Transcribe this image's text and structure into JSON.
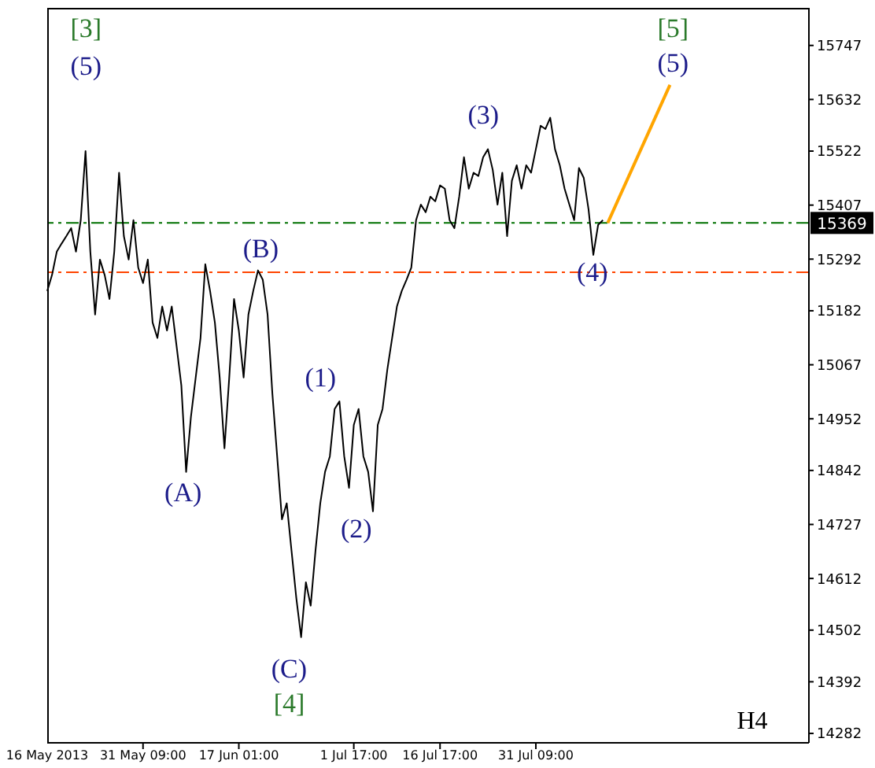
{
  "chart_data": {
    "type": "line",
    "categories": [
      "16 May 2013",
      null,
      null,
      null,
      null,
      null,
      null,
      null,
      null,
      null,
      null,
      null,
      null,
      null,
      null,
      null,
      null,
      null,
      null,
      null,
      "31 May 09:00",
      null,
      null,
      null,
      null,
      null,
      null,
      null,
      null,
      null,
      null,
      null,
      null,
      null,
      null,
      null,
      null,
      null,
      null,
      null,
      "17 Jun 01:00",
      null,
      null,
      null,
      null,
      null,
      null,
      null,
      null,
      null,
      null,
      null,
      null,
      null,
      null,
      null,
      null,
      null,
      null,
      null,
      null,
      null,
      null,
      null,
      "1 Jul 17:00",
      null,
      null,
      null,
      null,
      null,
      null,
      null,
      null,
      null,
      null,
      null,
      null,
      null,
      null,
      null,
      null,
      null,
      "16 Jul 17:00",
      null,
      null,
      null,
      null,
      null,
      null,
      null,
      null,
      null,
      null,
      null,
      null,
      null,
      null,
      null,
      null,
      null,
      null,
      null,
      "31 Jul 09:00",
      null,
      null,
      null,
      null,
      null,
      null,
      null,
      null,
      null,
      null,
      null,
      null,
      null,
      null,
      null,
      null,
      null,
      null,
      null,
      null,
      null,
      null,
      null,
      null,
      null,
      null,
      null,
      null,
      null,
      null,
      null,
      null,
      null,
      null,
      null,
      null,
      null,
      null,
      null,
      null,
      null,
      null,
      null,
      null,
      null,
      null,
      null,
      null,
      null,
      null,
      null,
      null,
      null,
      null,
      null,
      null,
      null
    ],
    "series": [
      {
        "color": "#000000",
        "values": [
          15224,
          15258,
          15308,
          15325,
          15341,
          15358,
          15308,
          15375,
          15522,
          15308,
          15174,
          15291,
          15258,
          15207,
          15308,
          15476,
          15341,
          15291,
          15375,
          15274,
          15241,
          15291,
          15157,
          15124,
          15191,
          15140,
          15191,
          15107,
          15023,
          14839,
          14956,
          15040,
          15124,
          15281,
          15224,
          15157,
          15040,
          14889,
          15040,
          15207,
          15140,
          15040,
          15174,
          15224,
          15268,
          15248,
          15174,
          15006,
          14872,
          14738,
          14772,
          14671,
          14570,
          14487,
          14604,
          14554,
          14671,
          14772,
          14839,
          14872,
          14973,
          14989,
          14872,
          14805,
          14939,
          14973,
          14872,
          14839,
          14755,
          14939,
          14973,
          15057,
          15124,
          15191,
          15224,
          15248,
          15274,
          15375,
          15408,
          15392,
          15425,
          15415,
          15449,
          15442,
          15375,
          15358,
          15425,
          15509,
          15442,
          15476,
          15469,
          15509,
          15526,
          15482,
          15408,
          15476,
          15341,
          15459,
          15492,
          15442,
          15492,
          15476,
          15526,
          15576,
          15569,
          15593,
          15526,
          15492,
          15442,
          15408,
          15375,
          15486,
          15465,
          15398,
          15301,
          15365,
          15375,
          null,
          null,
          null,
          null,
          null,
          null,
          null,
          null,
          null,
          null,
          null,
          null,
          null,
          null,
          null,
          null,
          null,
          null,
          null,
          null,
          null,
          null,
          null,
          null,
          null,
          null,
          null,
          null,
          null,
          null,
          null,
          null,
          null,
          null,
          null,
          null,
          null,
          null,
          null,
          null,
          null,
          null,
          null
        ]
      },
      {
        "type": "line",
        "color": "#ffa500",
        "values": [
          null,
          null,
          null,
          null,
          null,
          null,
          null,
          null,
          null,
          null,
          null,
          null,
          null,
          null,
          null,
          null,
          null,
          null,
          null,
          null,
          null,
          null,
          null,
          null,
          null,
          null,
          null,
          null,
          null,
          null,
          null,
          null,
          null,
          null,
          null,
          null,
          null,
          null,
          null,
          null,
          null,
          null,
          null,
          null,
          null,
          null,
          null,
          null,
          null,
          null,
          null,
          null,
          null,
          null,
          null,
          null,
          null,
          null,
          null,
          null,
          null,
          null,
          null,
          null,
          null,
          null,
          null,
          null,
          null,
          null,
          null,
          null,
          null,
          null,
          null,
          null,
          null,
          null,
          null,
          null,
          null,
          null,
          null,
          null,
          null,
          null,
          null,
          null,
          null,
          null,
          null,
          null,
          null,
          null,
          null,
          null,
          null,
          null,
          null,
          null,
          null,
          null,
          null,
          null,
          null,
          null,
          null,
          null,
          null,
          null,
          null,
          null,
          null,
          null,
          null,
          null,
          null,
          15369,
          null,
          null,
          null,
          null,
          null,
          null,
          null,
          null,
          null,
          null,
          null,
          null,
          15663,
          null,
          null,
          null,
          null,
          null,
          null,
          null,
          null,
          null,
          null,
          null,
          null,
          null,
          null,
          null,
          null,
          null,
          null,
          null,
          null,
          null,
          null,
          null,
          null,
          null,
          null,
          null,
          null,
          null
        ]
      }
    ],
    "ylim": [
      14262,
      15827
    ],
    "yticks": [
      14282,
      14392,
      14502,
      14612,
      14727,
      14842,
      14952,
      15067,
      15182,
      15292,
      15407,
      15522,
      15632,
      15747
    ],
    "ref_lines": [
      {
        "axis": "y",
        "value": 15369,
        "label": "15369",
        "color": "#007000",
        "line_style": "dashed"
      },
      {
        "axis": "y",
        "value": 15264,
        "color": "#ff4500",
        "line_style": "dashed"
      }
    ],
    "annotations": [
      "[3]",
      "(5)",
      "(B)",
      "(A)",
      "(1)",
      "(2)",
      "(C)",
      "[4]",
      "(3)",
      "(4)",
      "[5]",
      {
        "text": "(5)",
        "y": 15663
      },
      "H4"
    ],
    "grid": false,
    "legend": false,
    "marker": "none",
    "line_style": "solid"
  }
}
